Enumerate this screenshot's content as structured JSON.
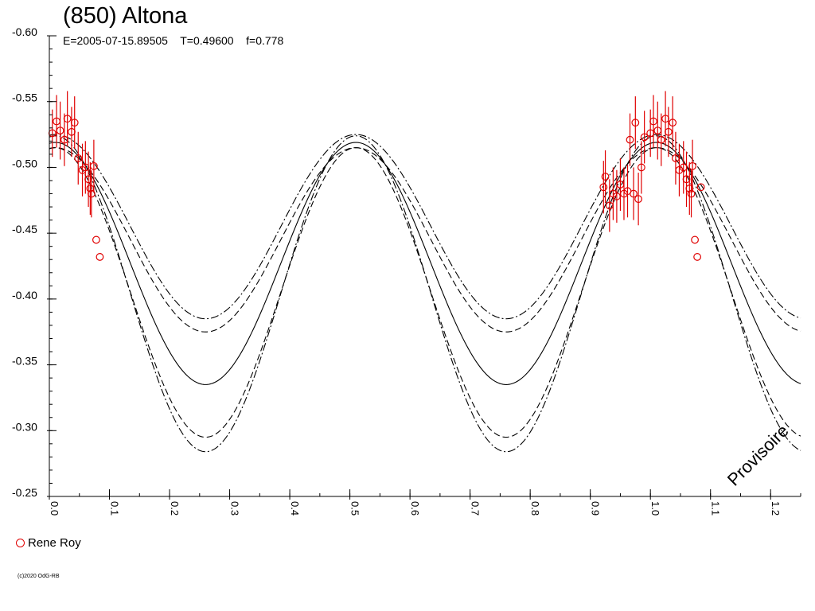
{
  "title": "(850) Altona",
  "params": "E=2005-07-15.89505    T=0.49600    f=0.778",
  "legend": {
    "label": "Rene Roy",
    "color": "#e00000"
  },
  "copyright": "(c)2020 OdG-RB",
  "stamp": "Provisoire",
  "chart_data": {
    "type": "scatter",
    "xlim": [
      0,
      1.25
    ],
    "ylim": [
      -0.6,
      -0.25
    ],
    "y_inverted": true,
    "x_ticks": [
      0.0,
      0.1,
      0.2,
      0.3,
      0.4,
      0.5,
      0.6,
      0.7,
      0.8,
      0.9,
      1.0,
      1.1,
      1.2
    ],
    "x_tick_labels": [
      "0.0",
      "0.1",
      "0.2",
      "0.3",
      "0.4",
      "0.5",
      "0.6",
      "0.7",
      "0.8",
      "0.9",
      "1.0",
      "1.1",
      "1.2"
    ],
    "y_ticks": [
      -0.6,
      -0.55,
      -0.5,
      -0.45,
      -0.4,
      -0.35,
      -0.3,
      -0.25
    ],
    "y_tick_labels": [
      "-0.60",
      "-0.55",
      "-0.50",
      "-0.45",
      "-0.40",
      "-0.35",
      "-0.30",
      "-0.25"
    ],
    "grid": false,
    "series": [
      {
        "name": "Rene Roy",
        "color": "#e00000",
        "marker": "open-circle",
        "x": [
          0.005,
          0.012,
          0.018,
          0.025,
          0.03,
          0.037,
          0.042,
          0.048,
          0.055,
          0.06,
          0.065,
          0.068,
          0.07,
          0.074,
          0.078,
          0.084,
          0.922,
          0.925,
          0.932,
          0.938,
          0.944,
          0.95,
          0.956,
          0.962,
          0.966,
          0.972,
          0.975,
          0.98,
          0.985,
          0.99,
          1.0,
          1.005,
          1.012,
          1.018,
          1.025,
          1.03,
          1.037,
          1.042,
          1.048,
          1.055,
          1.06,
          1.065,
          1.068,
          1.07,
          1.074,
          1.078,
          1.084
        ],
        "y": [
          -0.526,
          -0.535,
          -0.528,
          -0.521,
          -0.537,
          -0.527,
          -0.534,
          -0.507,
          -0.498,
          -0.5,
          -0.491,
          -0.484,
          -0.48,
          -0.501,
          -0.445,
          -0.432,
          -0.485,
          -0.493,
          -0.471,
          -0.48,
          -0.478,
          -0.487,
          -0.48,
          -0.482,
          -0.521,
          -0.48,
          -0.534,
          -0.476,
          -0.5,
          -0.523,
          -0.526,
          -0.535,
          -0.528,
          -0.521,
          -0.537,
          -0.527,
          -0.534,
          -0.507,
          -0.498,
          -0.5,
          -0.491,
          -0.484,
          -0.48,
          -0.501,
          -0.445,
          -0.432,
          -0.485
        ],
        "yerr": [
          0.018,
          0.02,
          0.022,
          0.02,
          0.021,
          0.019,
          0.02,
          0.02,
          0.02,
          0.02,
          0.021,
          0.02,
          0.018,
          0.02,
          0,
          0,
          0.02,
          0.02,
          0.02,
          0.02,
          0.02,
          0.02,
          0.02,
          0.02,
          0.02,
          0.02,
          0.02,
          0.02,
          0.02,
          0.02,
          0.018,
          0.02,
          0.022,
          0.02,
          0.021,
          0.019,
          0.02,
          0.02,
          0.02,
          0.02,
          0.021,
          0.02,
          0.018,
          0.02,
          0,
          0,
          0
        ]
      }
    ],
    "model_curves": [
      {
        "style": "solid",
        "mean": -0.427,
        "amplitude": 0.092,
        "phase_max": 0.01
      },
      {
        "style": "dashed",
        "mean": -0.445,
        "amplitude": 0.07,
        "phase_max": 0.01
      },
      {
        "style": "dashed",
        "mean": -0.405,
        "amplitude": 0.11,
        "phase_max": 0.01
      },
      {
        "style": "dashdot",
        "mean": -0.455,
        "amplitude": 0.07,
        "phase_max": 0.01
      },
      {
        "style": "dashdot",
        "mean": -0.404,
        "amplitude": 0.12,
        "phase_max": 0.01
      }
    ]
  }
}
